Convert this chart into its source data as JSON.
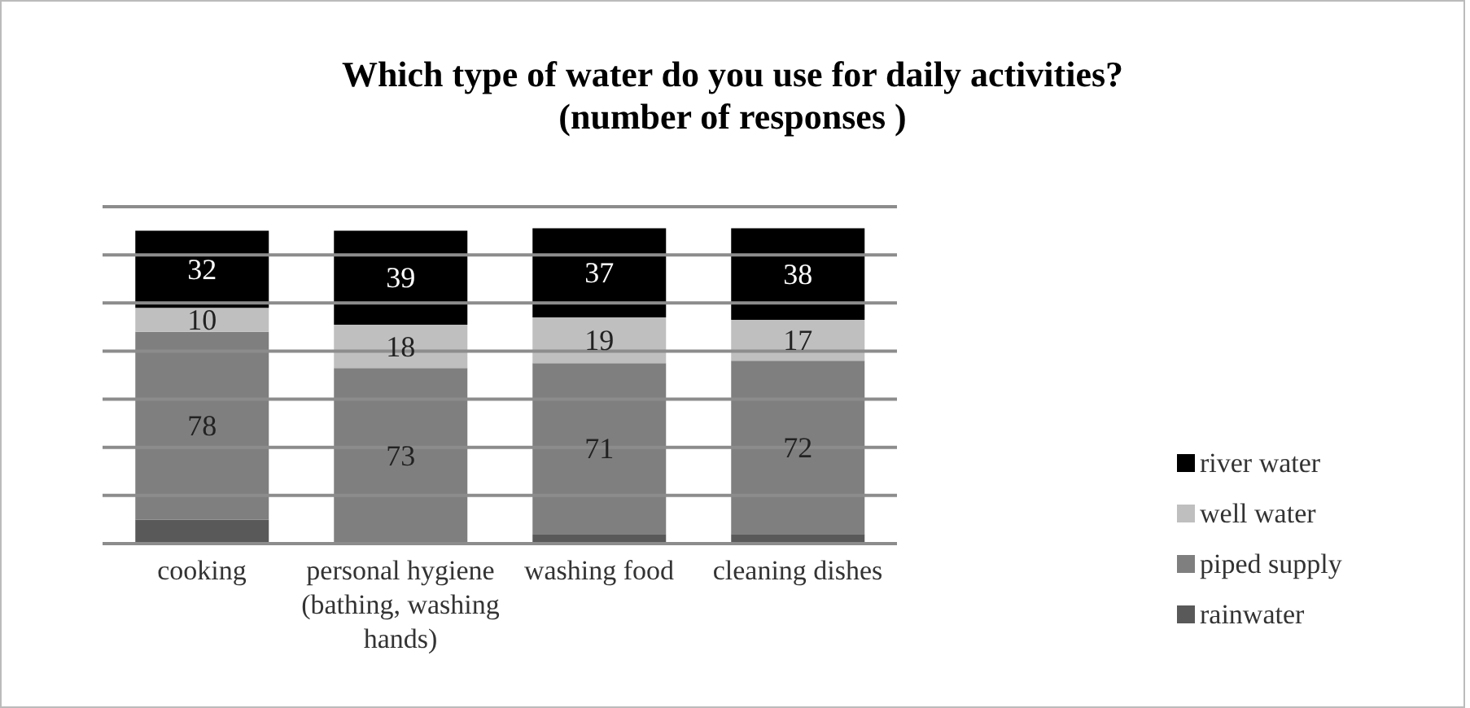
{
  "chart_data": {
    "type": "bar",
    "title": "Which type of water do you use for daily activities?\n(number of responses )",
    "categories": [
      "cooking",
      "personal hygiene (bathing, washing hands)",
      "washing food",
      "cleaning dishes"
    ],
    "stacked": true,
    "series": [
      {
        "name": "rainwater",
        "color": "#595959",
        "values": [
          10,
          0,
          4,
          4
        ],
        "value_labels": [
          null,
          null,
          null,
          null
        ]
      },
      {
        "name": "piped supply",
        "color": "#7f7f7f",
        "values": [
          78,
          73,
          71,
          72
        ],
        "value_labels": [
          "78",
          "73",
          "71",
          "72"
        ]
      },
      {
        "name": "well water",
        "color": "#bfbfbf",
        "values": [
          10,
          18,
          19,
          17
        ],
        "value_labels": [
          "10",
          "18",
          "19",
          "17"
        ]
      },
      {
        "name": "river water",
        "color": "#000000",
        "values": [
          32,
          39,
          37,
          38
        ],
        "value_labels": [
          "32",
          "39",
          "37",
          "38"
        ]
      }
    ],
    "ylim": [
      0,
      140
    ],
    "yticks": [
      {
        "value": 0,
        "label": null
      },
      {
        "value": 20,
        "label": null
      },
      {
        "value": 40,
        "label": null
      },
      {
        "value": 60,
        "label": null
      },
      {
        "value": 80,
        "label": null
      },
      {
        "value": 100,
        "label": null
      },
      {
        "value": 120,
        "label": null
      },
      {
        "value": 140,
        "label": null
      }
    ],
    "tick_labels": "x",
    "grid": "y",
    "legend": "right"
  }
}
